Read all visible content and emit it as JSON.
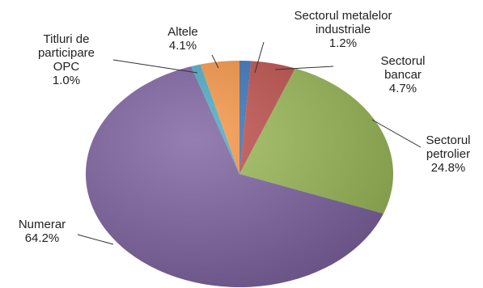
{
  "chart_data": {
    "type": "pie",
    "slices": [
      {
        "id": "sectorul-metalelor-industriale",
        "label_lines": [
          "Sectorul metalelor",
          "industriale"
        ],
        "value_label": "1.2%",
        "value": 1.2,
        "color": "#3c74b8"
      },
      {
        "id": "sectorul-bancar",
        "label_lines": [
          "Sectorul",
          "bancar"
        ],
        "value_label": "4.7%",
        "value": 4.7,
        "color": "#c0504d"
      },
      {
        "id": "sectorul-petrolier",
        "label_lines": [
          "Sectorul",
          "petrolier"
        ],
        "value_label": "24.8%",
        "value": 24.8,
        "color": "#9bbb59"
      },
      {
        "id": "numerar",
        "label_lines": [
          "Numerar"
        ],
        "value_label": "64.2%",
        "value": 64.2,
        "color": "#7e63a1"
      },
      {
        "id": "titluri-de-participare-opc",
        "label_lines": [
          "Titluri de",
          "participare",
          "OPC"
        ],
        "value_label": "1.0%",
        "value": 1.0,
        "color": "#4bacc6"
      },
      {
        "id": "altele",
        "label_lines": [
          "Altele"
        ],
        "value_label": "4.1%",
        "value": 4.1,
        "color": "#f79646"
      }
    ],
    "start_angle_deg": 0,
    "direction": "clockwise",
    "legend": "none",
    "data_labels": "outside with leader lines"
  }
}
